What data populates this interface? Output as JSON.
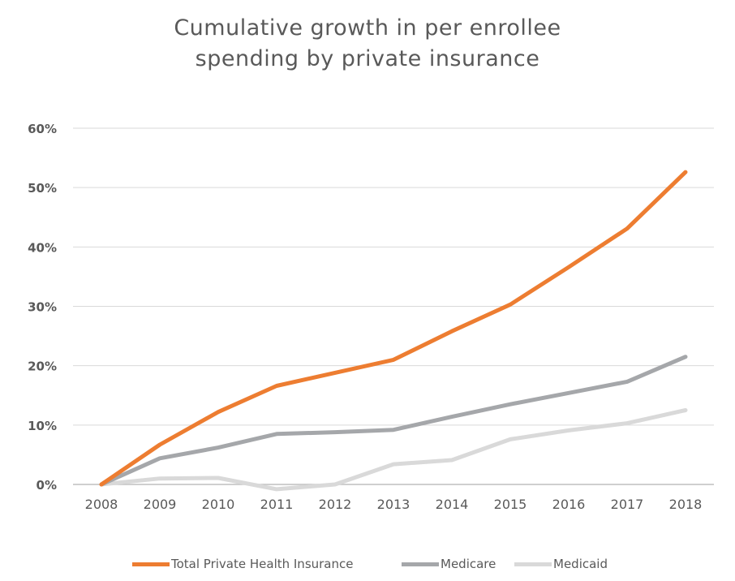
{
  "chart_data": {
    "type": "line",
    "title_lines": [
      "Cumulative growth in per enrollee",
      "spending by private insurance"
    ],
    "xlabel": "",
    "ylabel": "",
    "x": [
      "2008",
      "2009",
      "2010",
      "2011",
      "2012",
      "2013",
      "2014",
      "2015",
      "2016",
      "2017",
      "2018"
    ],
    "y_ticks": [
      "0%",
      "10%",
      "20%",
      "30%",
      "40%",
      "50%",
      "60%"
    ],
    "ylim": [
      0,
      60
    ],
    "y_unit": "%",
    "grid": true,
    "legend_position": "bottom",
    "series": [
      {
        "name": "Total Private Health Insurance",
        "color": "#ed7d31",
        "values": [
          0,
          6.7,
          12.2,
          16.6,
          18.8,
          21.0,
          25.8,
          30.3,
          36.6,
          43.1,
          52.6
        ]
      },
      {
        "name": "Medicare",
        "color": "#a5a7aa",
        "values": [
          0,
          4.4,
          6.2,
          8.5,
          8.8,
          9.2,
          11.4,
          13.5,
          15.4,
          17.3,
          21.5
        ]
      },
      {
        "name": "Medicaid",
        "color": "#d9d9d9",
        "values": [
          0,
          1.0,
          1.1,
          -0.8,
          0,
          3.4,
          4.1,
          7.6,
          9.1,
          10.3,
          12.5
        ]
      }
    ]
  }
}
